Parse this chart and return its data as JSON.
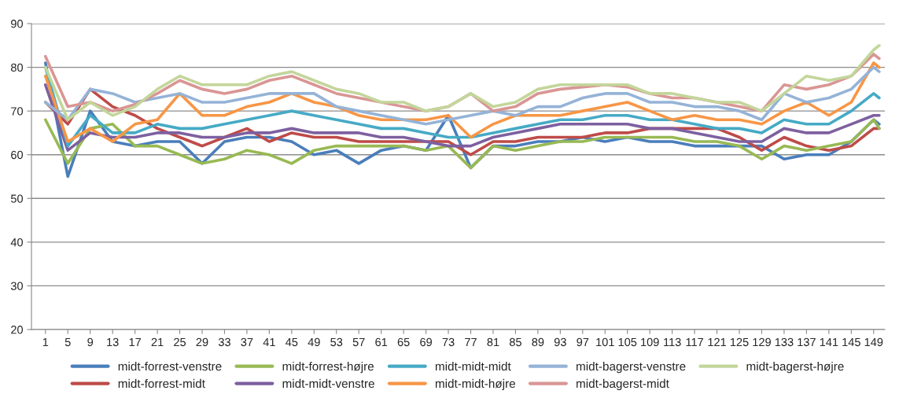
{
  "chart_data": {
    "type": "line",
    "xlim": [
      -1.5,
      151
    ],
    "xticks": [
      1,
      5,
      9,
      13,
      17,
      21,
      25,
      29,
      33,
      37,
      41,
      45,
      49,
      53,
      57,
      61,
      65,
      69,
      73,
      77,
      81,
      85,
      89,
      93,
      97,
      101,
      105,
      109,
      113,
      117,
      121,
      125,
      129,
      133,
      137,
      141,
      145,
      149
    ],
    "ylim": [
      20,
      90
    ],
    "yticks": [
      20,
      30,
      40,
      50,
      60,
      70,
      80,
      90
    ],
    "grid": "y",
    "legend": "bottom",
    "marker": "none",
    "line_style": "solid",
    "x": [
      1,
      5,
      9,
      13,
      17,
      21,
      25,
      29,
      33,
      37,
      41,
      45,
      49,
      53,
      57,
      61,
      65,
      69,
      73,
      77,
      81,
      85,
      89,
      93,
      97,
      101,
      105,
      109,
      113,
      117,
      121,
      125,
      129,
      133,
      137,
      141,
      145,
      149,
      150
    ],
    "series": [
      {
        "name": "midt-forrest-venstre",
        "color": "#4a7ebb",
        "values": [
          81,
          55,
          70,
          63,
          62,
          63,
          63,
          58,
          63,
          64,
          64,
          63,
          60,
          61,
          58,
          61,
          62,
          61,
          69,
          57,
          62,
          62,
          63,
          63,
          64,
          63,
          64,
          63,
          63,
          62,
          62,
          62,
          62,
          59,
          60,
          60,
          63,
          68,
          67
        ]
      },
      {
        "name": "midt-forrest-midt",
        "color": "#be4b48",
        "values": [
          72,
          67,
          75,
          71,
          69,
          66,
          64,
          62,
          64,
          66,
          63,
          65,
          64,
          64,
          63,
          63,
          63,
          63,
          63,
          60,
          63,
          63,
          64,
          64,
          64,
          65,
          65,
          66,
          66,
          66,
          66,
          64,
          61,
          64,
          62,
          61,
          62,
          66,
          66
        ]
      },
      {
        "name": "midt-forrest-højre",
        "color": "#98b954",
        "values": [
          68,
          58,
          66,
          67,
          62,
          62,
          60,
          58,
          59,
          61,
          60,
          58,
          61,
          62,
          62,
          62,
          62,
          61,
          62,
          57,
          62,
          61,
          62,
          63,
          63,
          64,
          64,
          64,
          64,
          63,
          63,
          62,
          59,
          62,
          61,
          62,
          63,
          68,
          66
        ]
      },
      {
        "name": "midt-midt-venstre",
        "color": "#7d60a0",
        "values": [
          76,
          61,
          65,
          64,
          64,
          65,
          65,
          64,
          64,
          65,
          65,
          66,
          65,
          65,
          65,
          64,
          64,
          63,
          62,
          62,
          64,
          65,
          66,
          67,
          67,
          67,
          67,
          66,
          66,
          65,
          64,
          63,
          63,
          66,
          65,
          65,
          67,
          69,
          69
        ]
      },
      {
        "name": "midt-midt-midt",
        "color": "#46aac5",
        "values": [
          80,
          62,
          69,
          65,
          65,
          67,
          66,
          66,
          67,
          68,
          69,
          70,
          69,
          68,
          67,
          66,
          66,
          65,
          64,
          64,
          65,
          66,
          67,
          68,
          68,
          69,
          69,
          68,
          68,
          67,
          66,
          66,
          65,
          68,
          67,
          67,
          70,
          74,
          73
        ]
      },
      {
        "name": "midt-midt-højre",
        "color": "#f79646",
        "values": [
          78,
          63,
          66,
          63,
          67,
          68,
          74,
          69,
          69,
          71,
          72,
          74,
          72,
          71,
          69,
          68,
          68,
          68,
          69,
          64,
          67,
          69,
          69,
          69,
          70,
          71,
          72,
          70,
          68,
          69,
          68,
          68,
          67,
          70,
          72,
          69,
          72,
          81,
          80
        ]
      },
      {
        "name": "midt-bagerst-venstre",
        "color": "#95b3d7",
        "values": [
          72,
          68,
          75,
          74,
          72,
          73,
          74,
          72,
          72,
          73,
          74,
          74,
          74,
          71,
          70,
          69,
          68,
          67,
          68,
          69,
          70,
          69,
          71,
          71,
          73,
          74,
          74,
          72,
          72,
          71,
          71,
          70,
          68,
          74,
          72,
          73,
          75,
          80,
          79
        ]
      },
      {
        "name": "midt-bagerst-midt",
        "color": "#d99694",
        "values": [
          82.5,
          71,
          72,
          70,
          71.5,
          74,
          77,
          75,
          74,
          75,
          77,
          78,
          76,
          74,
          73,
          72,
          71,
          70,
          71,
          74,
          70,
          71,
          74,
          75,
          75.5,
          76,
          75.5,
          74,
          73,
          73,
          72,
          71,
          70,
          76,
          75,
          76,
          78,
          83,
          82
        ]
      },
      {
        "name": "midt-bagerst-højre",
        "color": "#c3d69b",
        "values": [
          80,
          68,
          72,
          69,
          71,
          75,
          78,
          76,
          76,
          76,
          78,
          79,
          77,
          75,
          74,
          72,
          72,
          70,
          71,
          74,
          71,
          72,
          75,
          76,
          76,
          76,
          76,
          74,
          74,
          73,
          72,
          72,
          70,
          74,
          78,
          77,
          78,
          84,
          85
        ]
      }
    ]
  }
}
